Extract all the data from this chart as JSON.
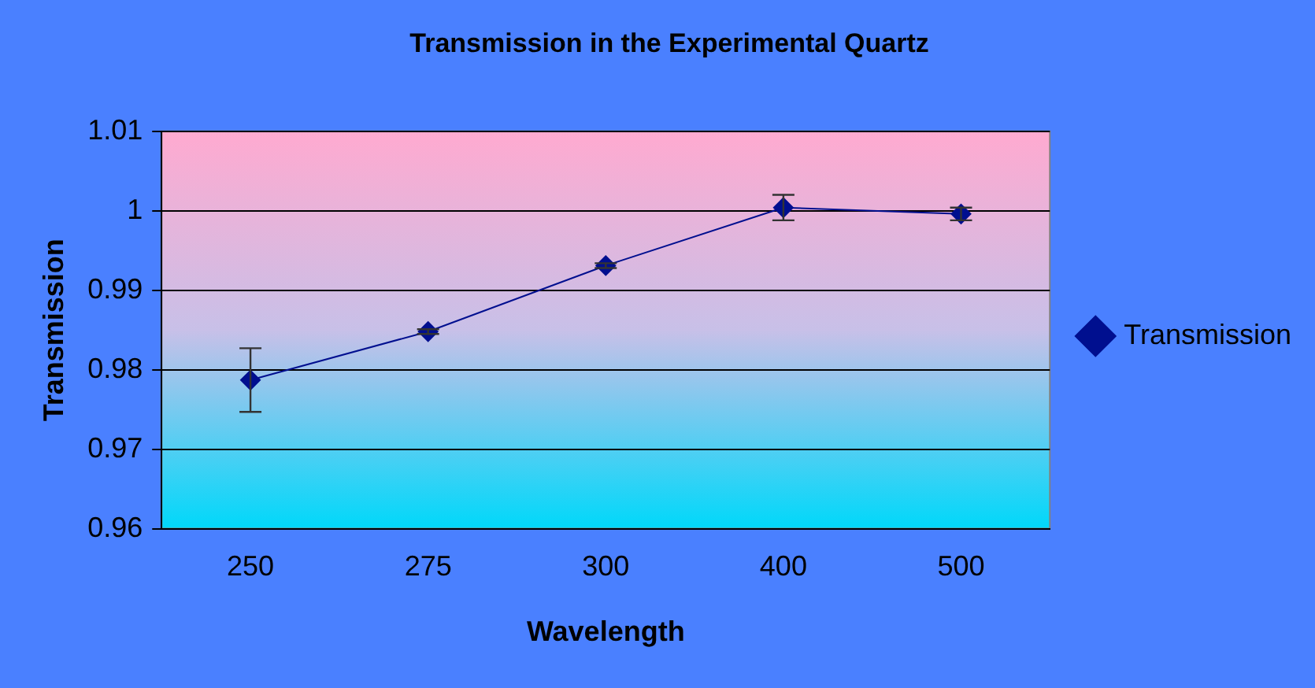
{
  "chart_data": {
    "type": "line",
    "title": "Transmission in the Experimental Quartz",
    "xlabel": "Wavelength",
    "ylabel": "Transmission",
    "categories": [
      "250",
      "275",
      "300",
      "400",
      "500"
    ],
    "series": [
      {
        "name": "Transmission",
        "color": "#000f8f",
        "values": [
          0.9787,
          0.9848,
          0.9931,
          1.0004,
          0.9996
        ],
        "errors": [
          0.004,
          0.0003,
          0.0003,
          0.0016,
          0.0008
        ]
      }
    ],
    "ylim": [
      0.96,
      1.01
    ],
    "yticks": [
      0.96,
      0.97,
      0.98,
      0.99,
      1,
      1.01
    ],
    "grid": "y",
    "legend": "right",
    "marker": "diamond",
    "line_style": "solid"
  }
}
